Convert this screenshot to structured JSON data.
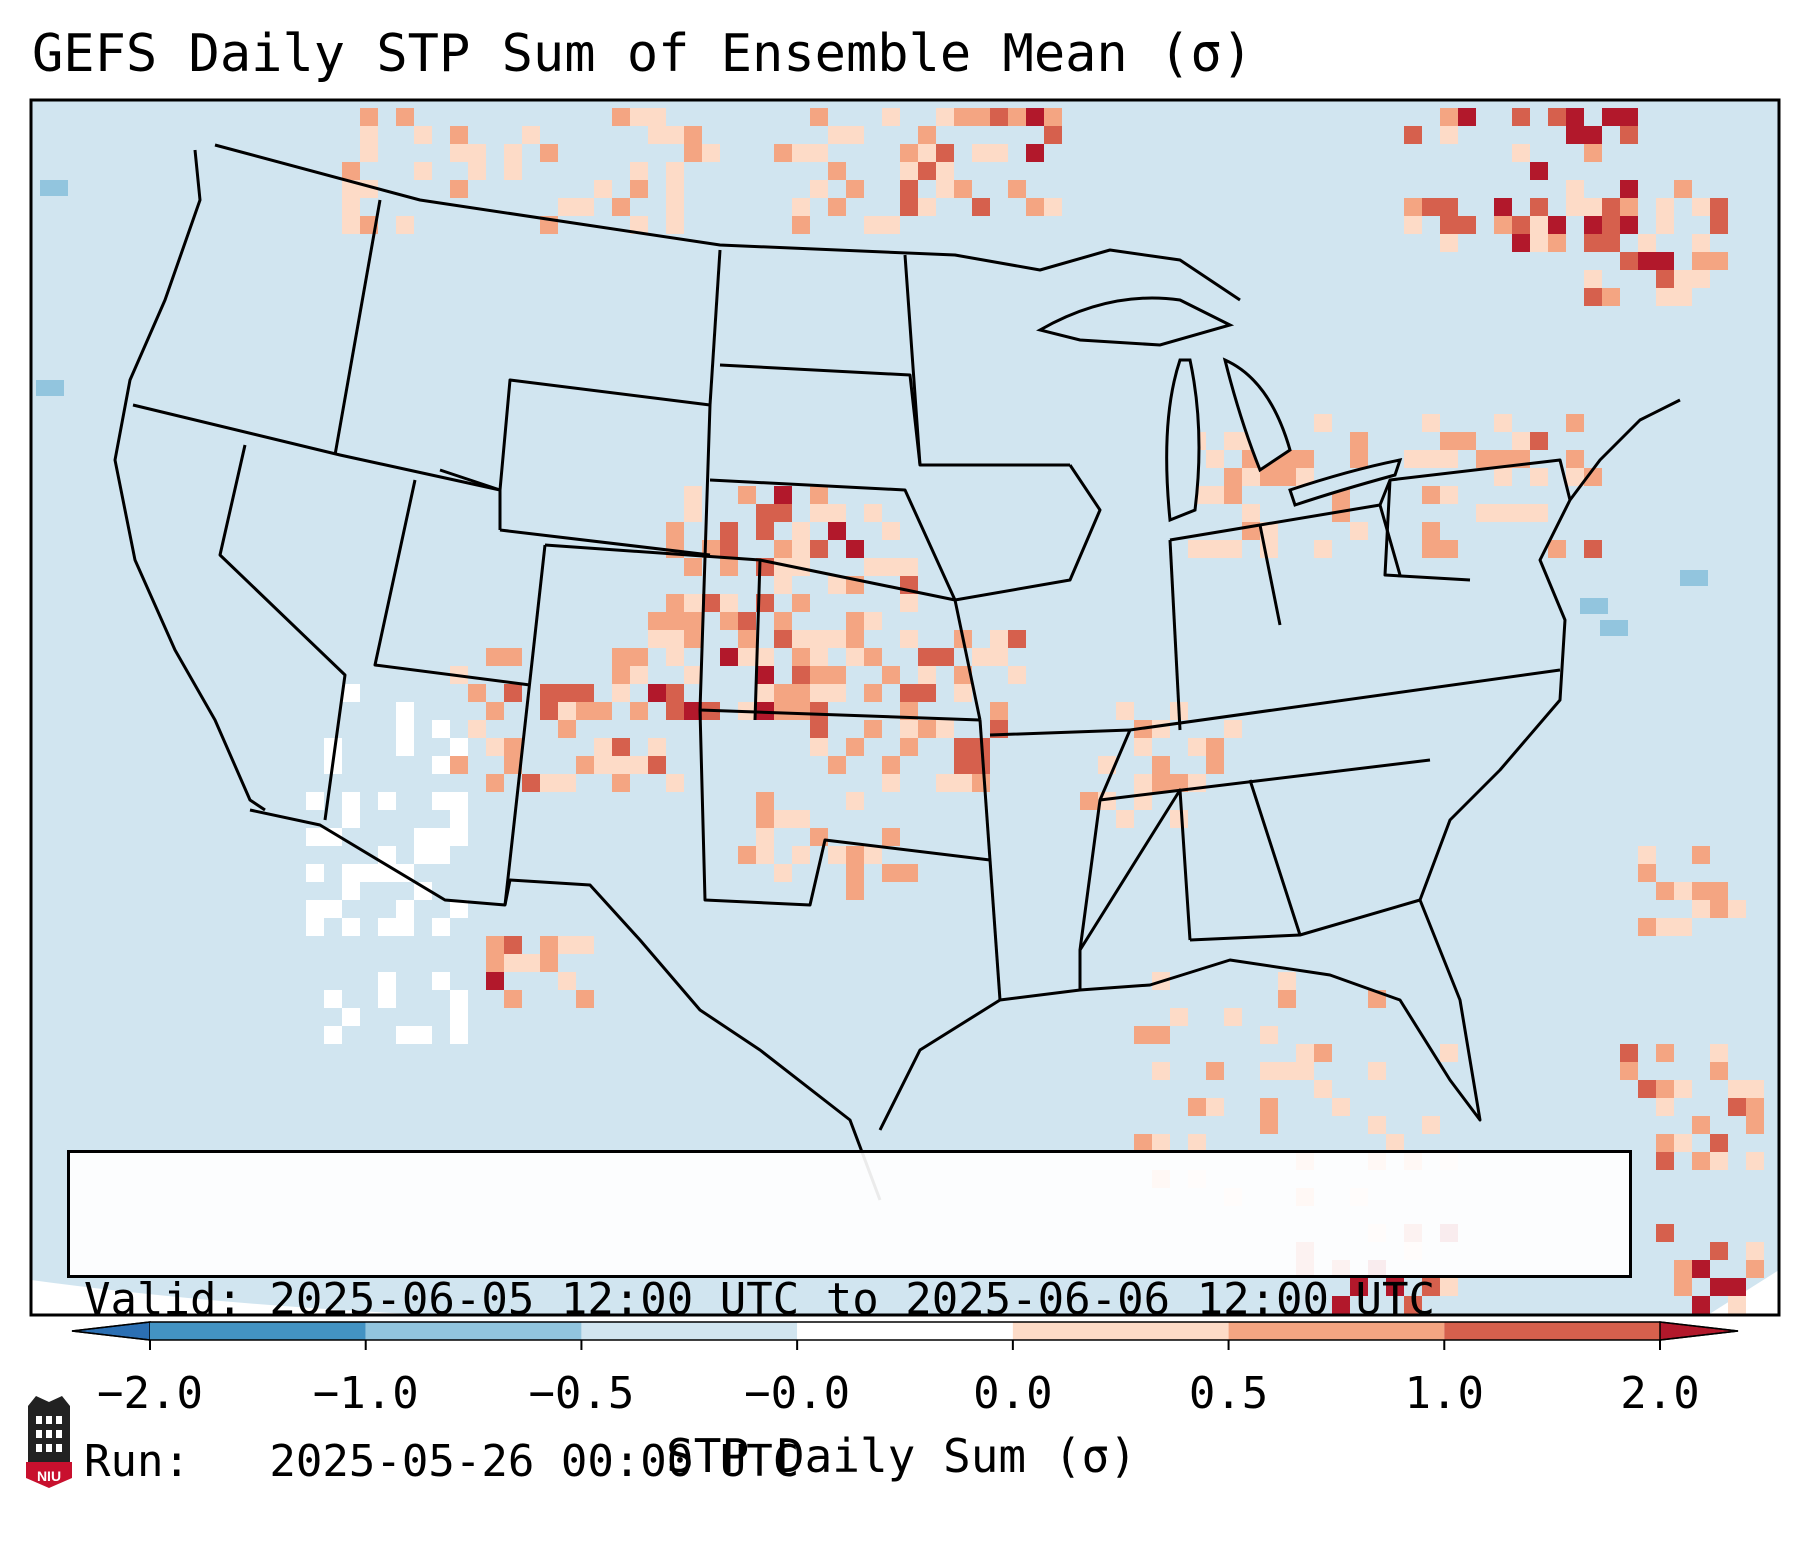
{
  "title": "GEFS Daily STP Sum of Ensemble Mean (σ)",
  "info": {
    "valid": "Valid: 2025-06-05 12:00 UTC to 2025-06-06 12:00 UTC",
    "run": "Run:   2025-05-26 00:00 UTC"
  },
  "colorbar": {
    "label": "STP Daily Sum (σ)",
    "ticks": [
      "−2.0",
      "−1.0",
      "−0.5",
      "−0.0",
      "0.0",
      "0.5",
      "1.0",
      "2.0"
    ],
    "colors": [
      "#2b6fb3",
      "#4393c3",
      "#92c5de",
      "#d1e5f0",
      "#ffffff",
      "#fddbc7",
      "#f4a582",
      "#d6604d",
      "#b2182b"
    ],
    "extend": "both"
  },
  "map": {
    "ocean_color": "#d1e5f0",
    "land_color": "#d1e5f0",
    "border_color": "#000000"
  },
  "logo": {
    "text": "NIU",
    "color": "#c8102e"
  }
}
